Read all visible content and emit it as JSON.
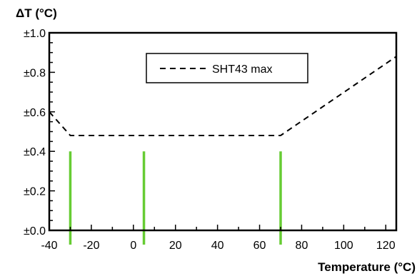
{
  "chart_data": {
    "type": "line",
    "xlabel": "Temperature (°C)",
    "ylabel": "ΔT (°C)",
    "xlim": [
      -40,
      125
    ],
    "ylim": [
      0,
      1.0
    ],
    "x_ticks": [
      -40,
      -20,
      0,
      20,
      40,
      60,
      80,
      100,
      120
    ],
    "x_tick_labels": [
      "-40",
      "-20",
      "0",
      "20",
      "40",
      "60",
      "80",
      "100",
      "120"
    ],
    "y_ticks": [
      0,
      0.2,
      0.4,
      0.6,
      0.8,
      1.0
    ],
    "y_tick_labels": [
      "±0.0",
      "±0.2",
      "±0.4",
      "±0.6",
      "±0.8",
      "±1.0"
    ],
    "grid": false,
    "legend_position": "top-center",
    "series": [
      {
        "name": "SHT43 max",
        "style": "dashed",
        "color": "#000000",
        "x": [
          -40,
          -30,
          70,
          125
        ],
        "y": [
          0.6,
          0.48,
          0.48,
          0.88
        ]
      }
    ],
    "markers": {
      "color": "#66cc33",
      "x": [
        -30,
        5,
        70
      ],
      "y_top": 0.4
    }
  }
}
